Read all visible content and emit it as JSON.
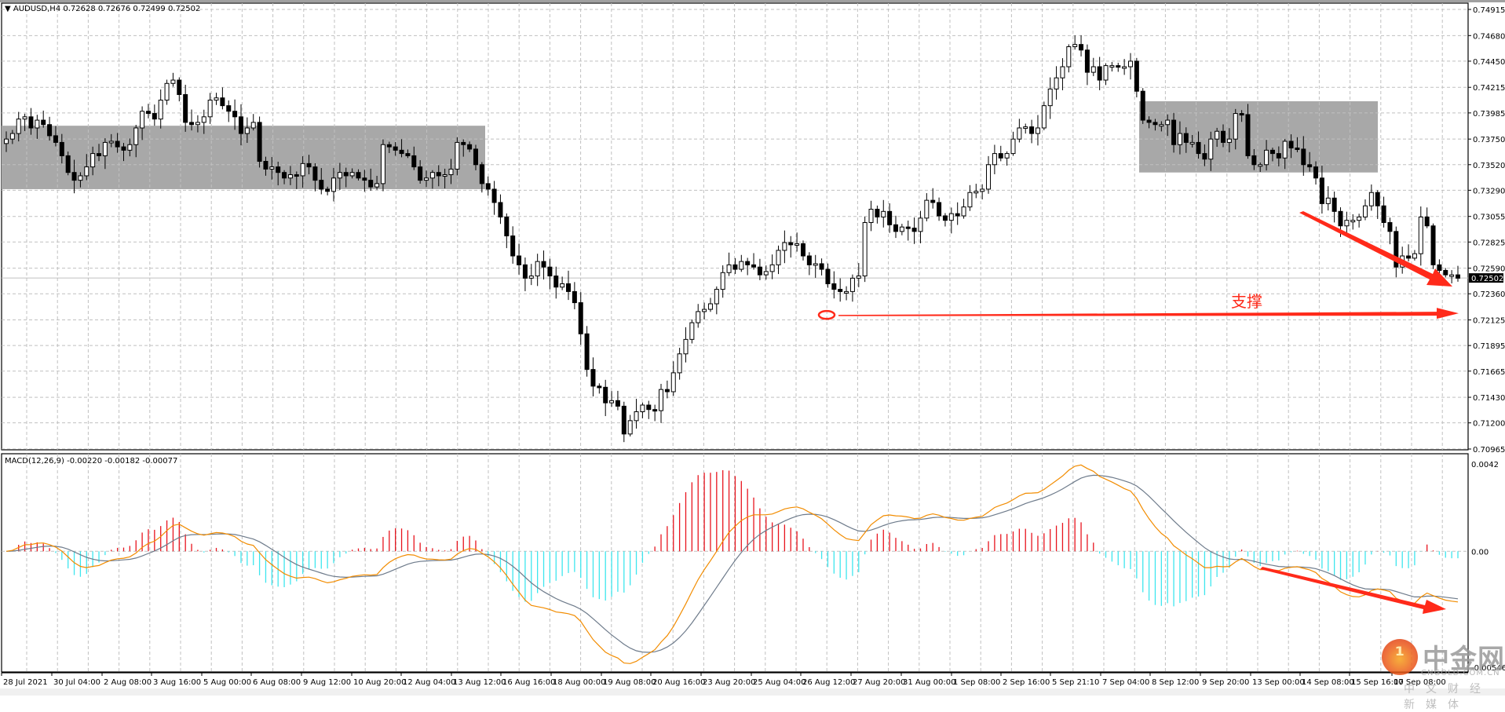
{
  "window": {
    "symbol_line": "AUDUSD,H4  0.72628 0.72676 0.72499 0.72502",
    "collapse_icon": "triangle-down-icon"
  },
  "main_pane": {
    "symbol": "AUDUSD",
    "timeframe": "H4",
    "ohlc_current": {
      "open": 0.72628,
      "high": 0.72676,
      "low": 0.72499,
      "close": 0.72502
    },
    "price_axis": [
      "0.74915",
      "0.74680",
      "0.74450",
      "0.74215",
      "0.73985",
      "0.73750",
      "0.73520",
      "0.73290",
      "0.73055",
      "0.72825",
      "0.72590",
      "0.72360",
      "0.72125",
      "0.71895",
      "0.71665",
      "0.71430",
      "0.71200",
      "0.70965"
    ],
    "current_price_tag": "0.72502",
    "annotations": {
      "support_label": "支撑",
      "support_color": "#ff2a1a",
      "range_box_color": "#a8a8a8"
    }
  },
  "macd_pane": {
    "title": "MACD(12,26,9) -0.00220 -0.00182 -0.00077",
    "params": "12,26,9",
    "values": [
      "-0.00220",
      "-0.00182",
      "-0.00077"
    ],
    "axis": [
      "0.0042",
      "0.00",
      "-0.00546"
    ],
    "colors": {
      "hist_pos": "#e8141e",
      "hist_neg": "#3ee6ee",
      "macd_line": "#f28c00",
      "signal_line": "#6e7b8b"
    }
  },
  "time_axis": [
    "28 Jul 2021",
    "30 Jul 04:00",
    "2 Aug 08:00",
    "3 Aug 16:00",
    "5 Aug 00:00",
    "6 Aug 08:00",
    "9 Aug 12:00",
    "10 Aug 20:00",
    "12 Aug 04:00",
    "13 Aug 12:00",
    "16 Aug 16:00",
    "18 Aug 00:00",
    "19 Aug 08:00",
    "20 Aug 16:00",
    "23 Aug 20:00",
    "25 Aug 04:00",
    "26 Aug 12:00",
    "27 Aug 20:00",
    "31 Aug 00:00",
    "1 Sep 08:00",
    "2 Sep 16:00",
    "5 Sep 21:10",
    "7 Sep 04:00",
    "8 Sep 12:00",
    "9 Sep 20:00",
    "13 Sep 00:00",
    "14 Sep 08:00",
    "15 Sep 16:00",
    "17 Sep 08:00"
  ],
  "watermark": {
    "cn": "中金网",
    "en": "CNGOLD.COM.CN",
    "sub": "中文财经新媒体"
  },
  "chart_data": [
    {
      "type": "candlestick",
      "title": "AUDUSD,H4",
      "ylabel": "Price",
      "ylim": [
        0.70965,
        0.74915
      ],
      "grid": true,
      "x_tick_labels": [
        "28 Jul 2021",
        "30 Jul 04:00",
        "2 Aug 08:00",
        "3 Aug 16:00",
        "5 Aug 00:00",
        "6 Aug 08:00",
        "9 Aug 12:00",
        "10 Aug 20:00",
        "12 Aug 04:00",
        "13 Aug 12:00",
        "16 Aug 16:00",
        "18 Aug 00:00",
        "19 Aug 08:00",
        "20 Aug 16:00",
        "23 Aug 20:00",
        "25 Aug 04:00",
        "26 Aug 12:00",
        "27 Aug 20:00",
        "31 Aug 00:00",
        "1 Sep 08:00",
        "2 Sep 16:00",
        "5 Sep 21:10",
        "7 Sep 04:00",
        "8 Sep 12:00",
        "9 Sep 20:00",
        "13 Sep 00:00",
        "14 Sep 08:00",
        "15 Sep 16:00",
        "17 Sep 08:00"
      ],
      "closes": [
        0.7375,
        0.738,
        0.7393,
        0.7395,
        0.7385,
        0.7392,
        0.7388,
        0.7378,
        0.7372,
        0.736,
        0.7345,
        0.7338,
        0.7342,
        0.735,
        0.7362,
        0.736,
        0.7372,
        0.7373,
        0.7368,
        0.7365,
        0.737,
        0.7385,
        0.74,
        0.7398,
        0.7393,
        0.741,
        0.7425,
        0.7428,
        0.7415,
        0.739,
        0.7388,
        0.739,
        0.7395,
        0.741,
        0.7412,
        0.7405,
        0.74,
        0.7395,
        0.738,
        0.7385,
        0.739,
        0.7355,
        0.7348,
        0.735,
        0.7345,
        0.734,
        0.7343,
        0.7342,
        0.7353,
        0.735,
        0.7338,
        0.733,
        0.7328,
        0.734,
        0.7345,
        0.7342,
        0.7345,
        0.734,
        0.7338,
        0.7332,
        0.7335,
        0.737,
        0.7368,
        0.7365,
        0.7362,
        0.736,
        0.735,
        0.7338,
        0.734,
        0.7345,
        0.7342,
        0.7343,
        0.7348,
        0.7372,
        0.737,
        0.7366,
        0.7352,
        0.7335,
        0.733,
        0.7318,
        0.7305,
        0.7288,
        0.727,
        0.7262,
        0.725,
        0.7252,
        0.7265,
        0.726,
        0.7252,
        0.7242,
        0.7245,
        0.7238,
        0.7228,
        0.72,
        0.7168,
        0.7153,
        0.7152,
        0.7138,
        0.714,
        0.7135,
        0.711,
        0.7122,
        0.713,
        0.7136,
        0.7132,
        0.7131,
        0.715,
        0.7148,
        0.7165,
        0.7182,
        0.7195,
        0.721,
        0.722,
        0.7222,
        0.7227,
        0.724,
        0.7255,
        0.7262,
        0.7258,
        0.7265,
        0.7262,
        0.726,
        0.7253,
        0.7256,
        0.7262,
        0.7275,
        0.7282,
        0.728,
        0.7281,
        0.727,
        0.7262,
        0.7263,
        0.7258,
        0.7245,
        0.724,
        0.7238,
        0.7238,
        0.725,
        0.7252,
        0.73,
        0.7312,
        0.7305,
        0.731,
        0.7298,
        0.7292,
        0.7296,
        0.7295,
        0.7292,
        0.7304,
        0.732,
        0.7318,
        0.7306,
        0.7302,
        0.7308,
        0.7306,
        0.7314,
        0.7327,
        0.7328,
        0.733,
        0.7352,
        0.7362,
        0.7358,
        0.7362,
        0.7375,
        0.7385,
        0.7386,
        0.738,
        0.7385,
        0.7405,
        0.742,
        0.743,
        0.744,
        0.7458,
        0.746,
        0.7455,
        0.7435,
        0.744,
        0.7428,
        0.7441,
        0.7441,
        0.744,
        0.744,
        0.7445,
        0.7418,
        0.7392,
        0.739,
        0.7388,
        0.7388,
        0.7392,
        0.737,
        0.738,
        0.7372,
        0.7372,
        0.7362,
        0.7357,
        0.7375,
        0.7382,
        0.7372,
        0.7375,
        0.7398,
        0.7397,
        0.736,
        0.7352,
        0.7352,
        0.7365,
        0.7362,
        0.7358,
        0.7373,
        0.7367,
        0.7366,
        0.7352,
        0.735,
        0.734,
        0.7317,
        0.7322,
        0.731,
        0.7297,
        0.7302,
        0.7302,
        0.7305,
        0.7315,
        0.7327,
        0.7315,
        0.73,
        0.7292,
        0.726,
        0.727,
        0.7268,
        0.7272,
        0.7305,
        0.7297,
        0.7262,
        0.7257,
        0.7253,
        0.7253,
        0.725
      ],
      "range_boxes": [
        {
          "from_x_label": "28 Jul 2021",
          "to_x_label": "13 Aug 12:00",
          "price_top": 0.7387,
          "price_bottom": 0.733
        },
        {
          "from_x_label": "8 Sep 12:00",
          "to_x_label": "15 Sep 16:00",
          "price_top": 0.7409,
          "price_bottom": 0.7345
        }
      ],
      "support_level": 0.7217,
      "support_label": "支撑",
      "current_price": 0.72502
    },
    {
      "type": "line+histogram",
      "title": "MACD(12,26,9)",
      "ylim": [
        -0.00546,
        0.0042
      ],
      "latest": {
        "main": -0.0022,
        "signal": -0.00182,
        "histogram": -0.00077
      },
      "axis_labels": [
        "0.0042",
        "0.00",
        "-0.00546"
      ]
    }
  ]
}
